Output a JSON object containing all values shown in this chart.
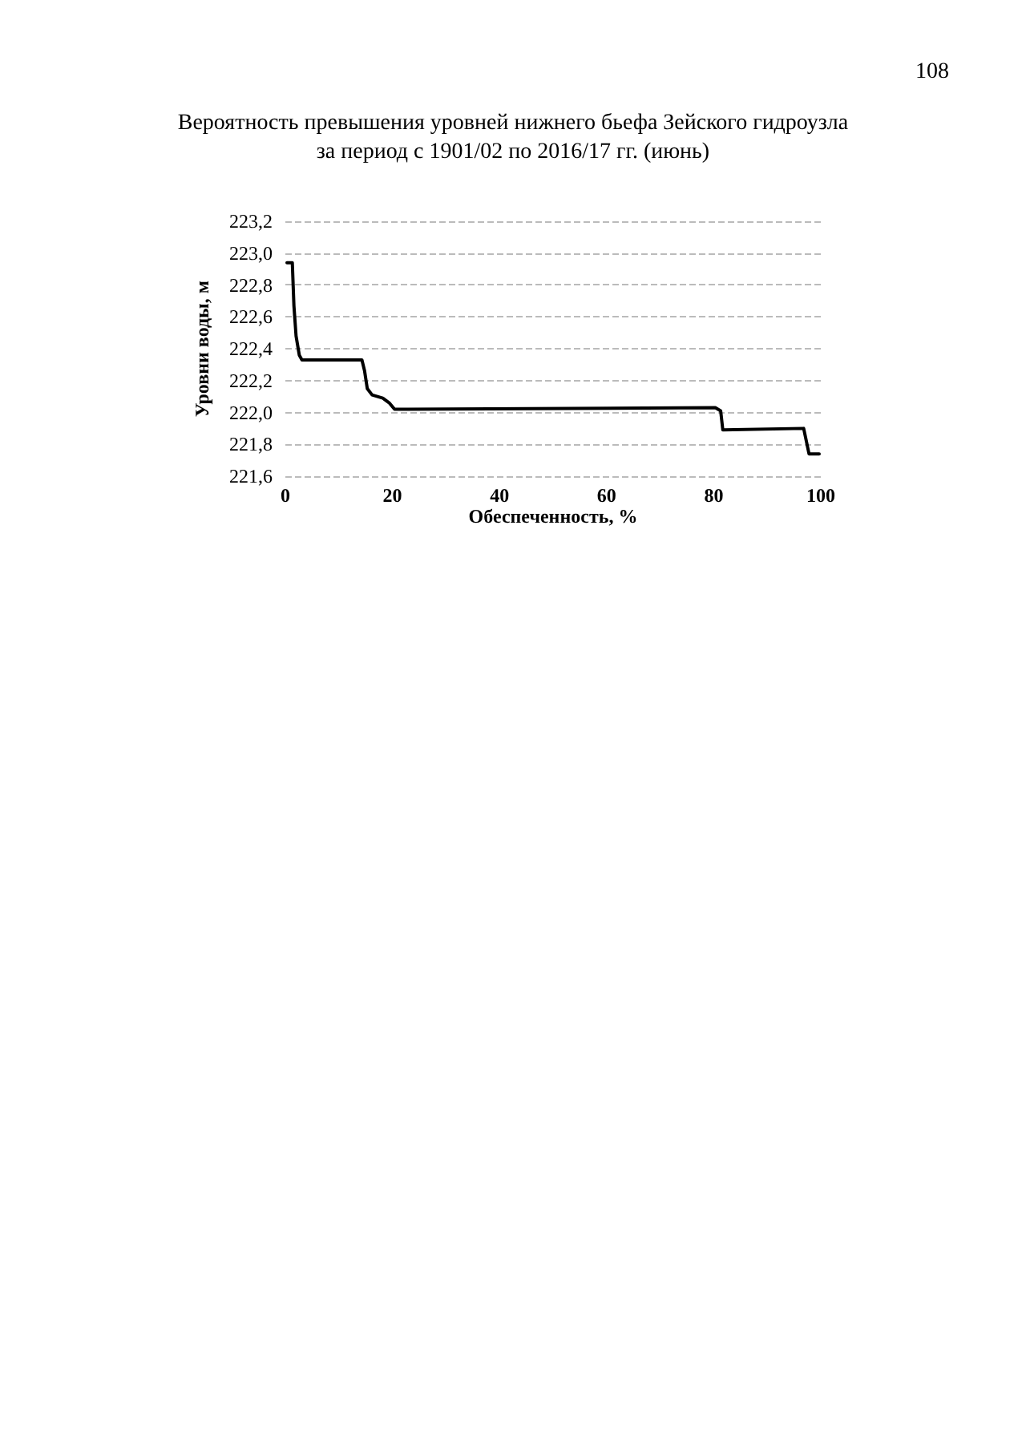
{
  "chart_data": {
    "type": "line",
    "title": "Вероятность превышения уровней нижнего бьефа Зейского гидроузла\nза период с 1901/02 по 2016/17 гг. (июнь)",
    "annotations": [
      "108"
    ],
    "xlabel": "Обеспеченность, %",
    "ylabel": "Уровни воды, м",
    "x": [
      0.3,
      1.3,
      1.6,
      2.0,
      2.6,
      3.1,
      14.3,
      14.8,
      15.3,
      16.2,
      18.2,
      19.4,
      20.4,
      80.3,
      81.3,
      81.7,
      96.8,
      97.8,
      99.7
    ],
    "series": [
      {
        "color": "#000000",
        "values": [
          222.94,
          222.94,
          222.67,
          222.48,
          222.36,
          222.33,
          222.33,
          222.26,
          222.15,
          222.11,
          222.09,
          222.06,
          222.02,
          222.03,
          222.01,
          221.89,
          221.9,
          221.74,
          221.74
        ]
      }
    ],
    "xlim": [
      0,
      100
    ],
    "xticks": [
      0,
      20,
      40,
      60,
      80,
      100
    ],
    "ylim": [
      221.6,
      223.2
    ],
    "yticks": [
      {
        "value": 221.6,
        "label": "221,6"
      },
      {
        "value": 221.8,
        "label": "221,8"
      },
      {
        "value": 222.0,
        "label": "222,0"
      },
      {
        "value": 222.2,
        "label": "222,2"
      },
      {
        "value": 222.4,
        "label": "222,4"
      },
      {
        "value": 222.6,
        "label": "222,6"
      },
      {
        "value": 222.8,
        "label": "222,8"
      },
      {
        "value": 223.0,
        "label": "223,0"
      },
      {
        "value": 223.2,
        "label": "223,2"
      }
    ],
    "grid": "y",
    "marker": "none",
    "line_style": "solid"
  }
}
